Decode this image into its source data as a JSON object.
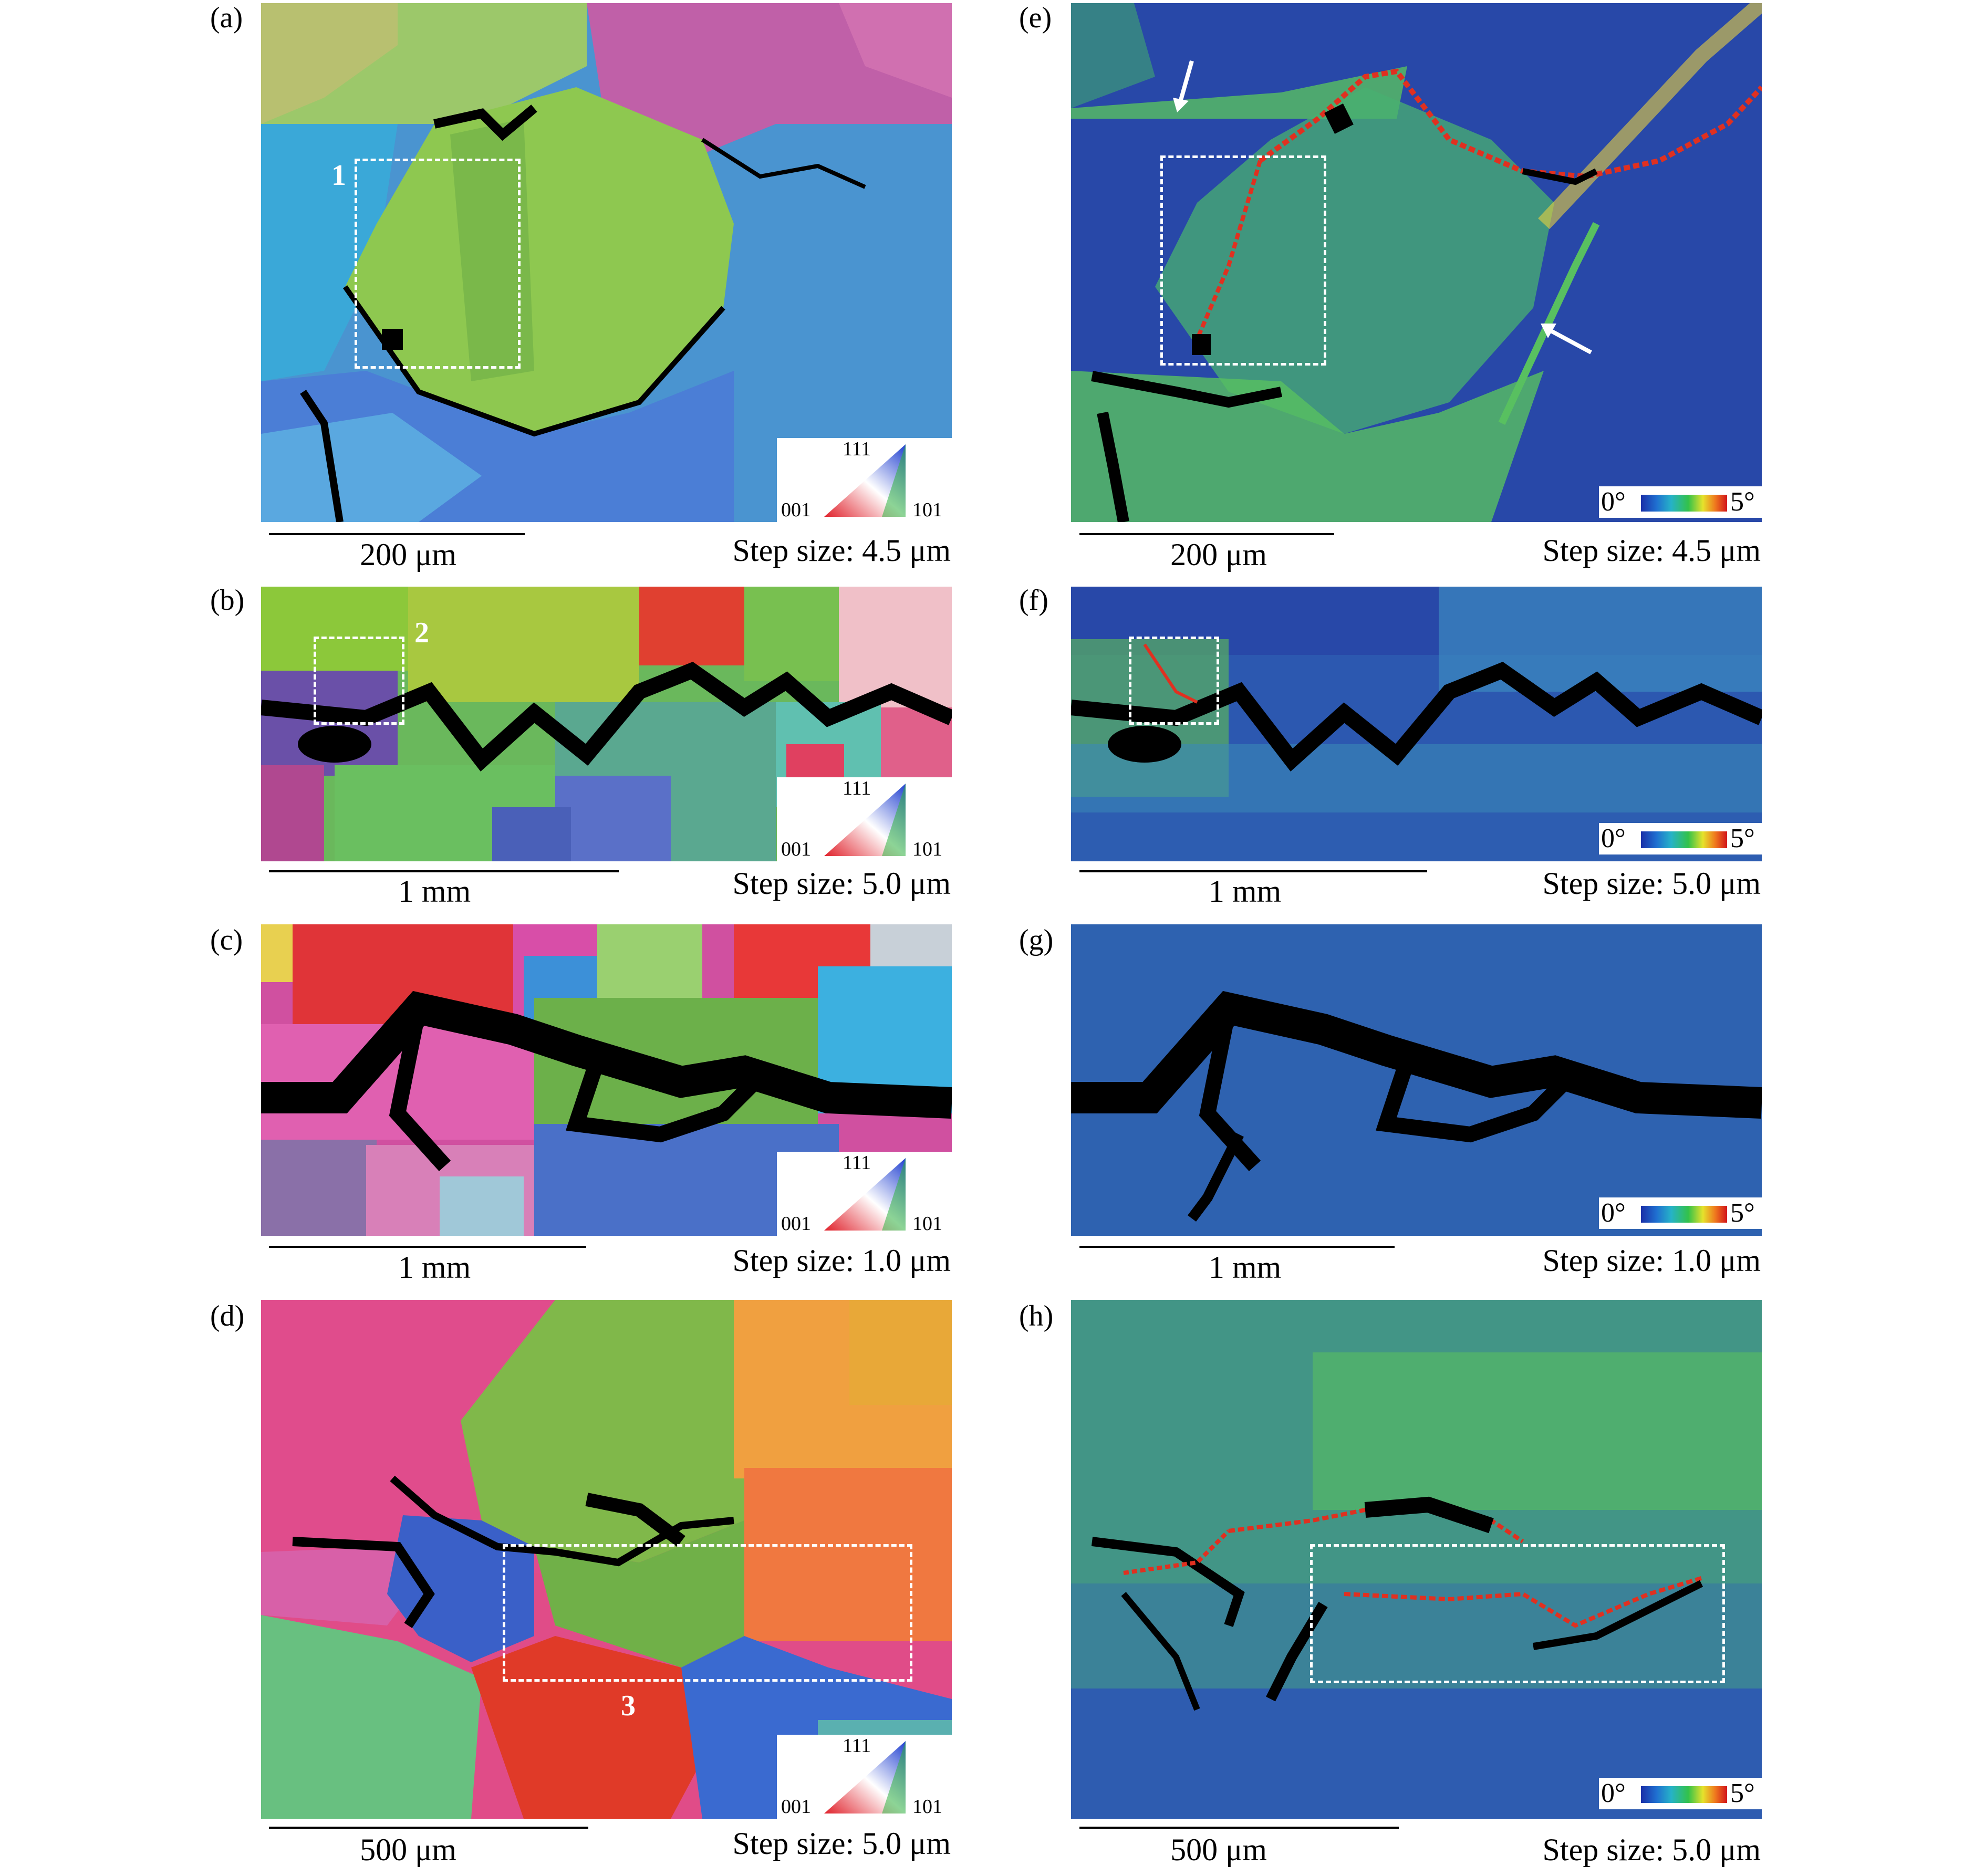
{
  "panels": {
    "a": {
      "label": "(a)",
      "scale": "200 μm",
      "step": "Step size: 4.5 μm",
      "region": "1"
    },
    "b": {
      "label": "(b)",
      "scale": "1 mm",
      "step": "Step size: 5.0 μm",
      "region": "2"
    },
    "c": {
      "label": "(c)",
      "scale": "1 mm",
      "step": "Step size: 1.0 μm"
    },
    "d": {
      "label": "(d)",
      "scale": "500 μm",
      "step": "Step size: 5.0 μm",
      "region": "3"
    },
    "e": {
      "label": "(e)",
      "scale": "200 μm",
      "step": "Step size: 4.5 μm"
    },
    "f": {
      "label": "(f)",
      "scale": "1 mm",
      "step": "Step size: 5.0 μm"
    },
    "g": {
      "label": "(g)",
      "scale": "1 mm",
      "step": "Step size: 1.0 μm"
    },
    "h": {
      "label": "(h)",
      "scale": "500 μm",
      "step": "Step size: 5.0 μm"
    }
  },
  "ipf_legend": {
    "top": "111",
    "left": "001",
    "right": "101"
  },
  "kam_legend": {
    "min": "0°",
    "max": "5°"
  },
  "colors": {
    "kam_background": "#2848a8",
    "crack": "#000000",
    "dashed_box": "#ffffff"
  }
}
